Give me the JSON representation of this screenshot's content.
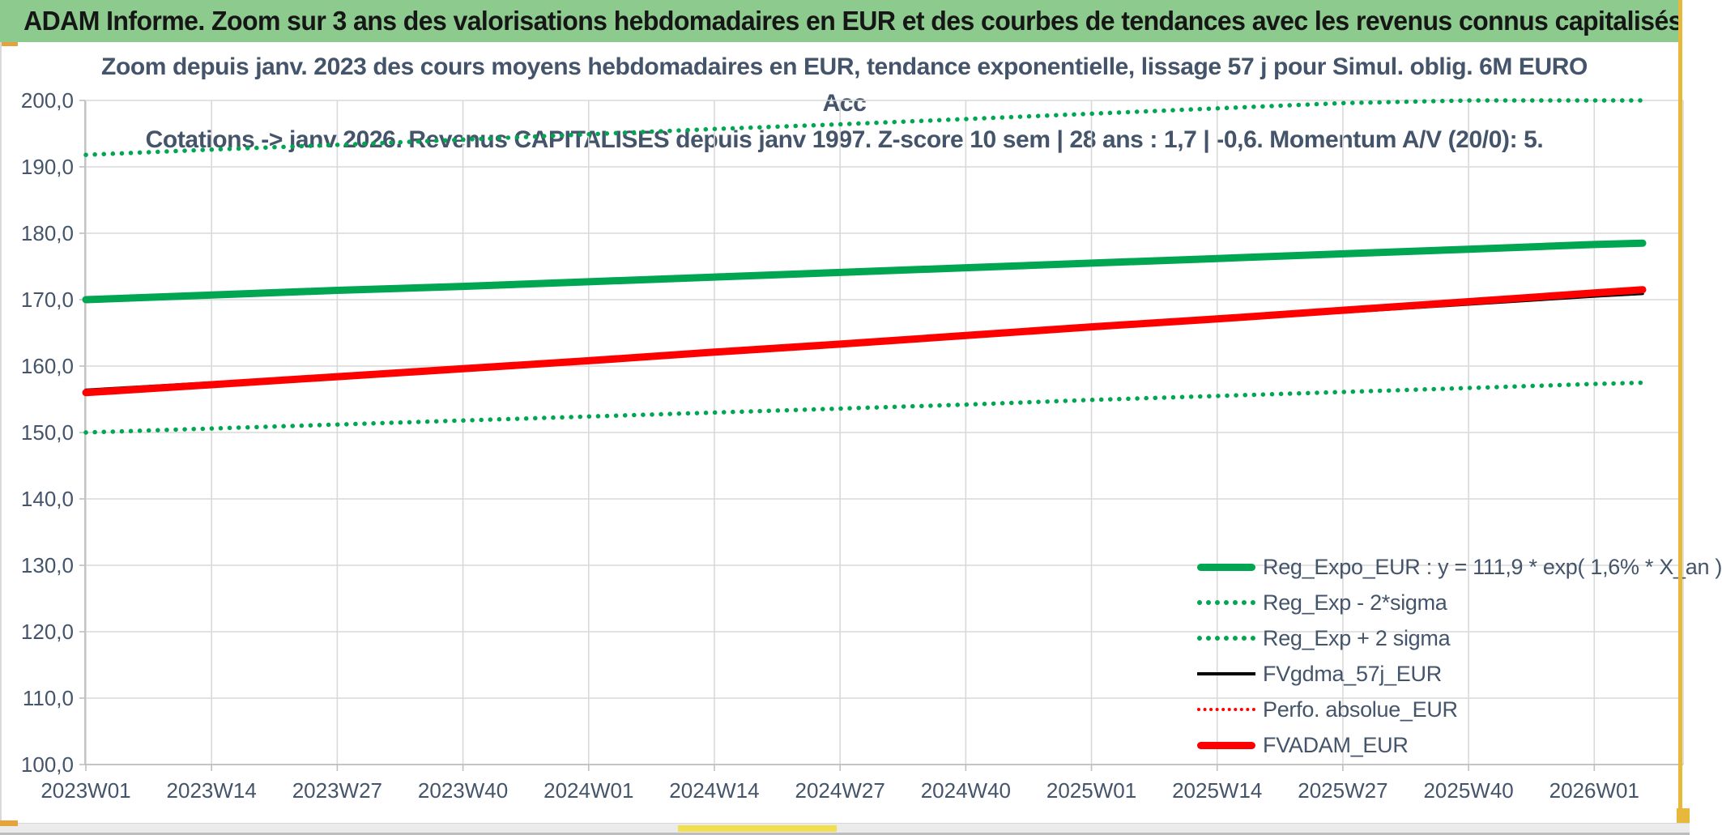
{
  "window": {
    "title": "ADAM Informe. Zoom sur 3 ans des valorisations hebdomadaires en EUR et des courbes de tendances avec les revenus connus capitalisés",
    "banner_color": "#8DCA8D",
    "accent_gold": "#E5A33C",
    "accent_yellow": "#F2DE4E"
  },
  "subtitle": {
    "line1": "Zoom depuis janv. 2023 des cours moyens hebdomadaires en EUR, tendance exponentielle, lissage 57 j pour Simul. oblig. 6M EURO Acc",
    "line2": "Cotations -> janv 2026. Revenus CAPITALISES depuis janv 1997. Z-score 10 sem | 28 ans : 1,7 | -0,6. Momentum A/V (20/0): 5."
  },
  "chart_data": {
    "type": "line",
    "title": "",
    "xlabel": "",
    "ylabel": "",
    "ylim": [
      100,
      200
    ],
    "grid": true,
    "text_color": "#44546A",
    "grid_color": "#D9D9D9",
    "axis_color": "#BFBFBF",
    "x_tick_labels": [
      "2023W01",
      "2023W14",
      "2023W27",
      "2023W40",
      "2024W01",
      "2024W14",
      "2024W27",
      "2024W40",
      "2025W01",
      "2025W14",
      "2025W27",
      "2025W40",
      "2026W01"
    ],
    "x_tick_weeks": [
      0,
      13,
      26,
      39,
      52,
      65,
      78,
      91,
      104,
      117,
      130,
      143,
      156
    ],
    "y_tick_labels": [
      "100,0",
      "110,0",
      "120,0",
      "130,0",
      "140,0",
      "150,0",
      "160,0",
      "170,0",
      "180,0",
      "190,0",
      "200,0"
    ],
    "y_tick_values": [
      100,
      110,
      120,
      130,
      140,
      150,
      160,
      170,
      180,
      190,
      200
    ],
    "x_weeks_domain": [
      0,
      161
    ],
    "sample_weeks": [
      0,
      13,
      26,
      39,
      52,
      65,
      78,
      91,
      104,
      117,
      130,
      143,
      156,
      161
    ],
    "series": [
      {
        "name": "Reg_Exp + 2 sigma",
        "color": "#00A651",
        "style": "dot",
        "values": [
          191.8,
          192.6,
          193.3,
          194.1,
          194.9,
          195.7,
          196.4,
          197.2,
          198.0,
          198.8,
          199.6,
          200.0,
          200.0,
          200.0
        ],
        "note": "clipped at axis max 200"
      },
      {
        "name": "Reg_Exp - 2*sigma",
        "color": "#00A651",
        "style": "dot",
        "values": [
          150.0,
          150.6,
          151.2,
          151.8,
          152.4,
          153.0,
          153.6,
          154.2,
          154.9,
          155.5,
          156.1,
          156.7,
          157.3,
          157.5
        ]
      },
      {
        "name": "Reg_Expo_EUR",
        "color": "#00A651",
        "style": "thick",
        "values": [
          170.0,
          170.7,
          171.4,
          172.0,
          172.7,
          173.4,
          174.1,
          174.8,
          175.5,
          176.2,
          176.9,
          177.6,
          178.3,
          178.5
        ]
      },
      {
        "name": "Perfo. absolue_EUR",
        "color": "#FF0000",
        "style": "thin-dot",
        "values": [
          156.0,
          157.2,
          158.4,
          159.6,
          160.8,
          162.1,
          163.3,
          164.6,
          165.9,
          167.1,
          168.4,
          169.7,
          171.0,
          171.5
        ]
      },
      {
        "name": "FVgdma_57j_EUR",
        "color": "#000000",
        "style": "thin",
        "values": [
          156.4,
          157.5,
          158.5,
          159.9,
          160.9,
          162.1,
          163.3,
          164.6,
          165.8,
          166.9,
          168.1,
          169.3,
          170.5,
          170.9
        ]
      },
      {
        "name": "FVADAM_EUR",
        "color": "#FF0000",
        "style": "thick",
        "values": [
          156.0,
          157.2,
          158.4,
          159.6,
          160.8,
          162.1,
          163.3,
          164.6,
          165.9,
          167.1,
          168.4,
          169.7,
          171.0,
          171.5
        ]
      }
    ],
    "legend_position": "inside lower right"
  },
  "legend": {
    "items": [
      {
        "label": "Reg_Expo_EUR : y = 111,9 * exp( 1,6% *  X_an )",
        "marker": "mk-thick",
        "color": "#00A651"
      },
      {
        "label": "Reg_Exp - 2*sigma",
        "marker": "mk-dot",
        "color": "#00A651"
      },
      {
        "label": "Reg_Exp + 2 sigma",
        "marker": "mk-dot",
        "color": "#00A651"
      },
      {
        "label": "FVgdma_57j_EUR",
        "marker": "mk-thin",
        "color": "#000000"
      },
      {
        "label": "Perfo. absolue_EUR",
        "marker": "mk-thin-dot",
        "color": "#FF0000"
      },
      {
        "label": "FVADAM_EUR",
        "marker": "mk-thick",
        "color": "#FF0000"
      }
    ]
  }
}
